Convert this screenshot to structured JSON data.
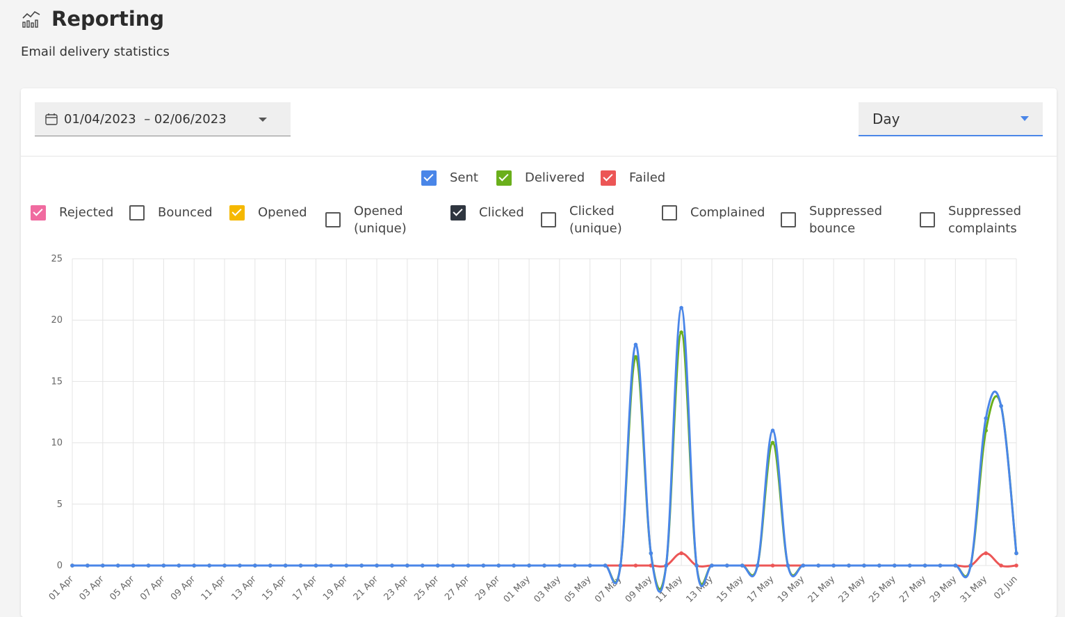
{
  "page": {
    "title": "Reporting",
    "subtitle": "Email delivery statistics",
    "icon": "chart-icon"
  },
  "toolbar": {
    "date_range": "01/04/2023  – 02/06/2023",
    "period": "Day"
  },
  "legend": [
    {
      "key": "sent",
      "label": "Sent",
      "checked": true,
      "color": "#4a86e8"
    },
    {
      "key": "delivered",
      "label": "Delivered",
      "checked": true,
      "color": "#6aaf1b"
    },
    {
      "key": "failed",
      "label": "Failed",
      "checked": true,
      "color": "#ec5656"
    },
    {
      "key": "rejected",
      "label": "Rejected",
      "checked": true,
      "color": "#f06ba0"
    },
    {
      "key": "bounced",
      "label": "Bounced",
      "checked": false,
      "color": ""
    },
    {
      "key": "opened",
      "label": "Opened",
      "checked": true,
      "color": "#f5b800"
    },
    {
      "key": "opened_unique",
      "label": "Opened (unique)",
      "checked": false,
      "color": ""
    },
    {
      "key": "clicked",
      "label": "Clicked",
      "checked": true,
      "color": "#2f3640"
    },
    {
      "key": "clicked_unique",
      "label": "Clicked (unique)",
      "checked": false,
      "color": ""
    },
    {
      "key": "complained",
      "label": "Complained",
      "checked": false,
      "color": ""
    },
    {
      "key": "suppressed_bounce",
      "label": "Suppressed bounce",
      "checked": false,
      "color": ""
    },
    {
      "key": "suppressed_complaints",
      "label": "Suppressed complaints",
      "checked": false,
      "color": ""
    }
  ],
  "chart_data": {
    "type": "line",
    "x_range": [
      "2023-04-01",
      "2023-06-02"
    ],
    "x_tick_labels": [
      "01 Apr",
      "03 Apr",
      "05 Apr",
      "07 Apr",
      "09 Apr",
      "11 Apr",
      "13 Apr",
      "15 Apr",
      "17 Apr",
      "19 Apr",
      "21 Apr",
      "23 Apr",
      "25 Apr",
      "27 Apr",
      "29 Apr",
      "01 May",
      "03 May",
      "05 May",
      "07 May",
      "09 May",
      "11 May",
      "13 May",
      "15 May",
      "17 May",
      "19 May",
      "21 May",
      "23 May",
      "25 May",
      "27 May",
      "29 May",
      "31 May",
      "02 Jun"
    ],
    "ylim": [
      0,
      25
    ],
    "y_ticks": [
      0,
      5,
      10,
      15,
      20,
      25
    ],
    "grid": true,
    "series": [
      {
        "name": "Sent",
        "color": "#4a86e8",
        "points": {
          "2023-05-08": 18,
          "2023-05-09": 1,
          "2023-05-11": 21,
          "2023-05-17": 11,
          "2023-05-31": 12,
          "2023-06-01": 13,
          "2023-06-02": 1
        }
      },
      {
        "name": "Delivered",
        "color": "#6aaf1b",
        "points": {
          "2023-05-08": 17,
          "2023-05-09": 1,
          "2023-05-11": 19,
          "2023-05-17": 10,
          "2023-05-31": 11,
          "2023-06-01": 13,
          "2023-06-02": 1
        }
      },
      {
        "name": "Failed",
        "color": "#ec5656",
        "points": {
          "2023-05-11": 1,
          "2023-05-31": 1
        }
      }
    ]
  }
}
